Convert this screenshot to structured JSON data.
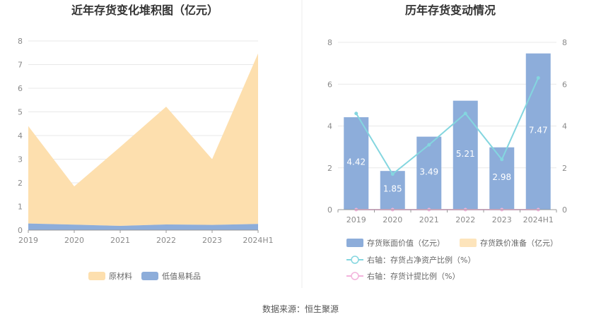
{
  "source": "数据来源：恒生聚源",
  "colors": {
    "raw_material": "#fddfae",
    "low_value": "#8dadda",
    "book_value": "#8dadda",
    "impairment": "#fde4bb",
    "net_asset_ratio": "#84d6df",
    "provision_ratio": "#f3b3dc"
  },
  "chart_data": [
    {
      "type": "area",
      "title": "近年存货变化堆积图（亿元）",
      "categories": [
        "2019",
        "2020",
        "2021",
        "2022",
        "2023",
        "2024H1"
      ],
      "ylim": [
        0,
        8
      ],
      "yticks": [
        "0",
        "1",
        "2",
        "3",
        "4",
        "5",
        "6",
        "7",
        "8"
      ],
      "series": [
        {
          "name": "低值易耗品",
          "values": [
            0.28,
            0.23,
            0.18,
            0.24,
            0.22,
            0.26
          ]
        },
        {
          "name": "原材料",
          "values": [
            4.12,
            1.62,
            3.34,
            4.98,
            2.78,
            7.21
          ]
        }
      ],
      "legend": [
        "原材料",
        "低值易耗品"
      ],
      "legend_position": "bottom",
      "grid": true
    },
    {
      "type": "bar",
      "title": "历年存货变动情况",
      "categories": [
        "2019",
        "2020",
        "2021",
        "2022",
        "2023",
        "2024H1"
      ],
      "ylim_left": [
        0,
        8
      ],
      "ylim_right": [
        0,
        8
      ],
      "yticks_left": [
        "0",
        "2",
        "4",
        "6",
        "8"
      ],
      "yticks_right": [
        "0",
        "2",
        "4",
        "6",
        "8"
      ],
      "bar_series": [
        {
          "name": "存货账面价值（亿元）",
          "values": [
            4.42,
            1.85,
            3.49,
            5.21,
            2.98,
            7.47
          ],
          "labels": [
            "4.42",
            "1.85",
            "3.49",
            "5.21",
            "2.98",
            "7.47"
          ]
        },
        {
          "name": "存货跌价准备（亿元）",
          "values": [
            0,
            0,
            0,
            0,
            0,
            0
          ]
        }
      ],
      "line_series": [
        {
          "name": "右轴：存货占净资产比例（%）",
          "values": [
            4.6,
            1.7,
            3.1,
            4.6,
            2.4,
            6.3
          ]
        },
        {
          "name": "右轴：存货计提比例（%）",
          "values": [
            0,
            0,
            0,
            0,
            0,
            0
          ]
        }
      ],
      "legend_position": "bottom",
      "grid": true
    }
  ]
}
